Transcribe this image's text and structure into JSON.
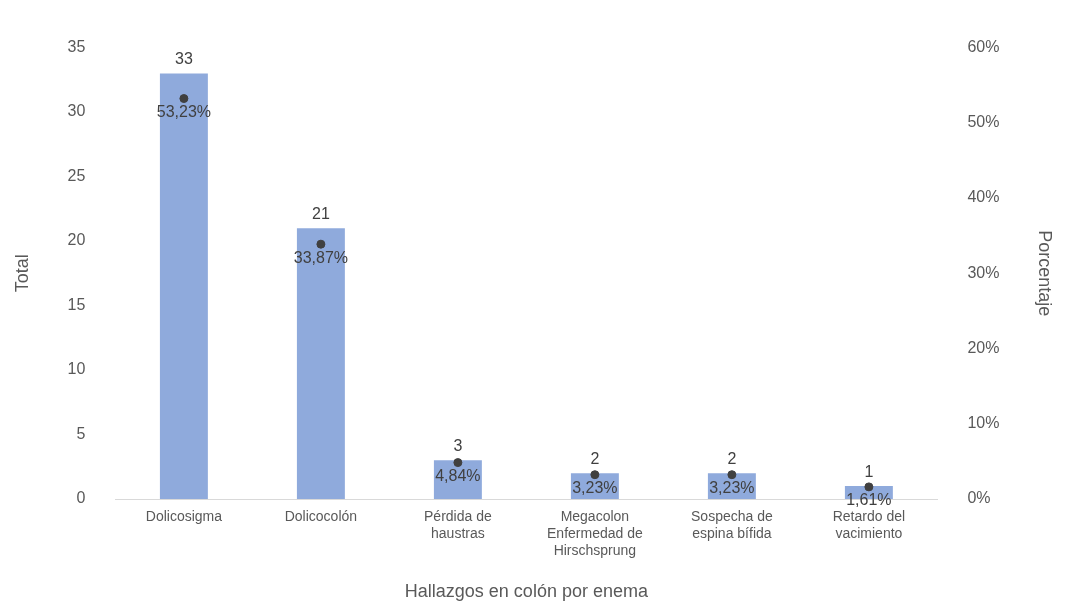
{
  "chart_data": {
    "type": "bar",
    "xlabel": "Hallazgos en colón por enema",
    "ylabel": "Total",
    "y2label": "Porcentaje",
    "categories": [
      "Dolicosigma",
      "Dolicocolón",
      "Pérdida de haustras",
      "Megacolon Enfermedad de Hirschsprung",
      "Sospecha de espina bífida",
      "Retardo del vacimiento"
    ],
    "series": [
      {
        "color": "#8faadc",
        "values": [
          33,
          21,
          3,
          2,
          2,
          1
        ],
        "value_labels": [
          "33",
          "21",
          "3",
          "2",
          "2",
          "1"
        ]
      },
      {
        "type": "scatter",
        "axis": "y2",
        "color": "#404040",
        "marker": "circle",
        "values": [
          53.23,
          33.87,
          4.84,
          3.23,
          3.23,
          1.61
        ],
        "value_labels": [
          "53,23%",
          "33,87%",
          "4,84%",
          "3,23%",
          "3,23%",
          "1,61%"
        ]
      }
    ],
    "ylim": [
      0,
      35
    ],
    "yticks": [
      0,
      5,
      10,
      15,
      20,
      25,
      30,
      35
    ],
    "y2lim": [
      0,
      60
    ],
    "y2ticks": [
      {
        "value": 0,
        "label": "0%"
      },
      {
        "value": 10,
        "label": "10%"
      },
      {
        "value": 20,
        "label": "20%"
      },
      {
        "value": 30,
        "label": "30%"
      },
      {
        "value": 40,
        "label": "40%"
      },
      {
        "value": 50,
        "label": "50%"
      },
      {
        "value": 60,
        "label": "60%"
      }
    ],
    "grid": false,
    "legend": false
  }
}
